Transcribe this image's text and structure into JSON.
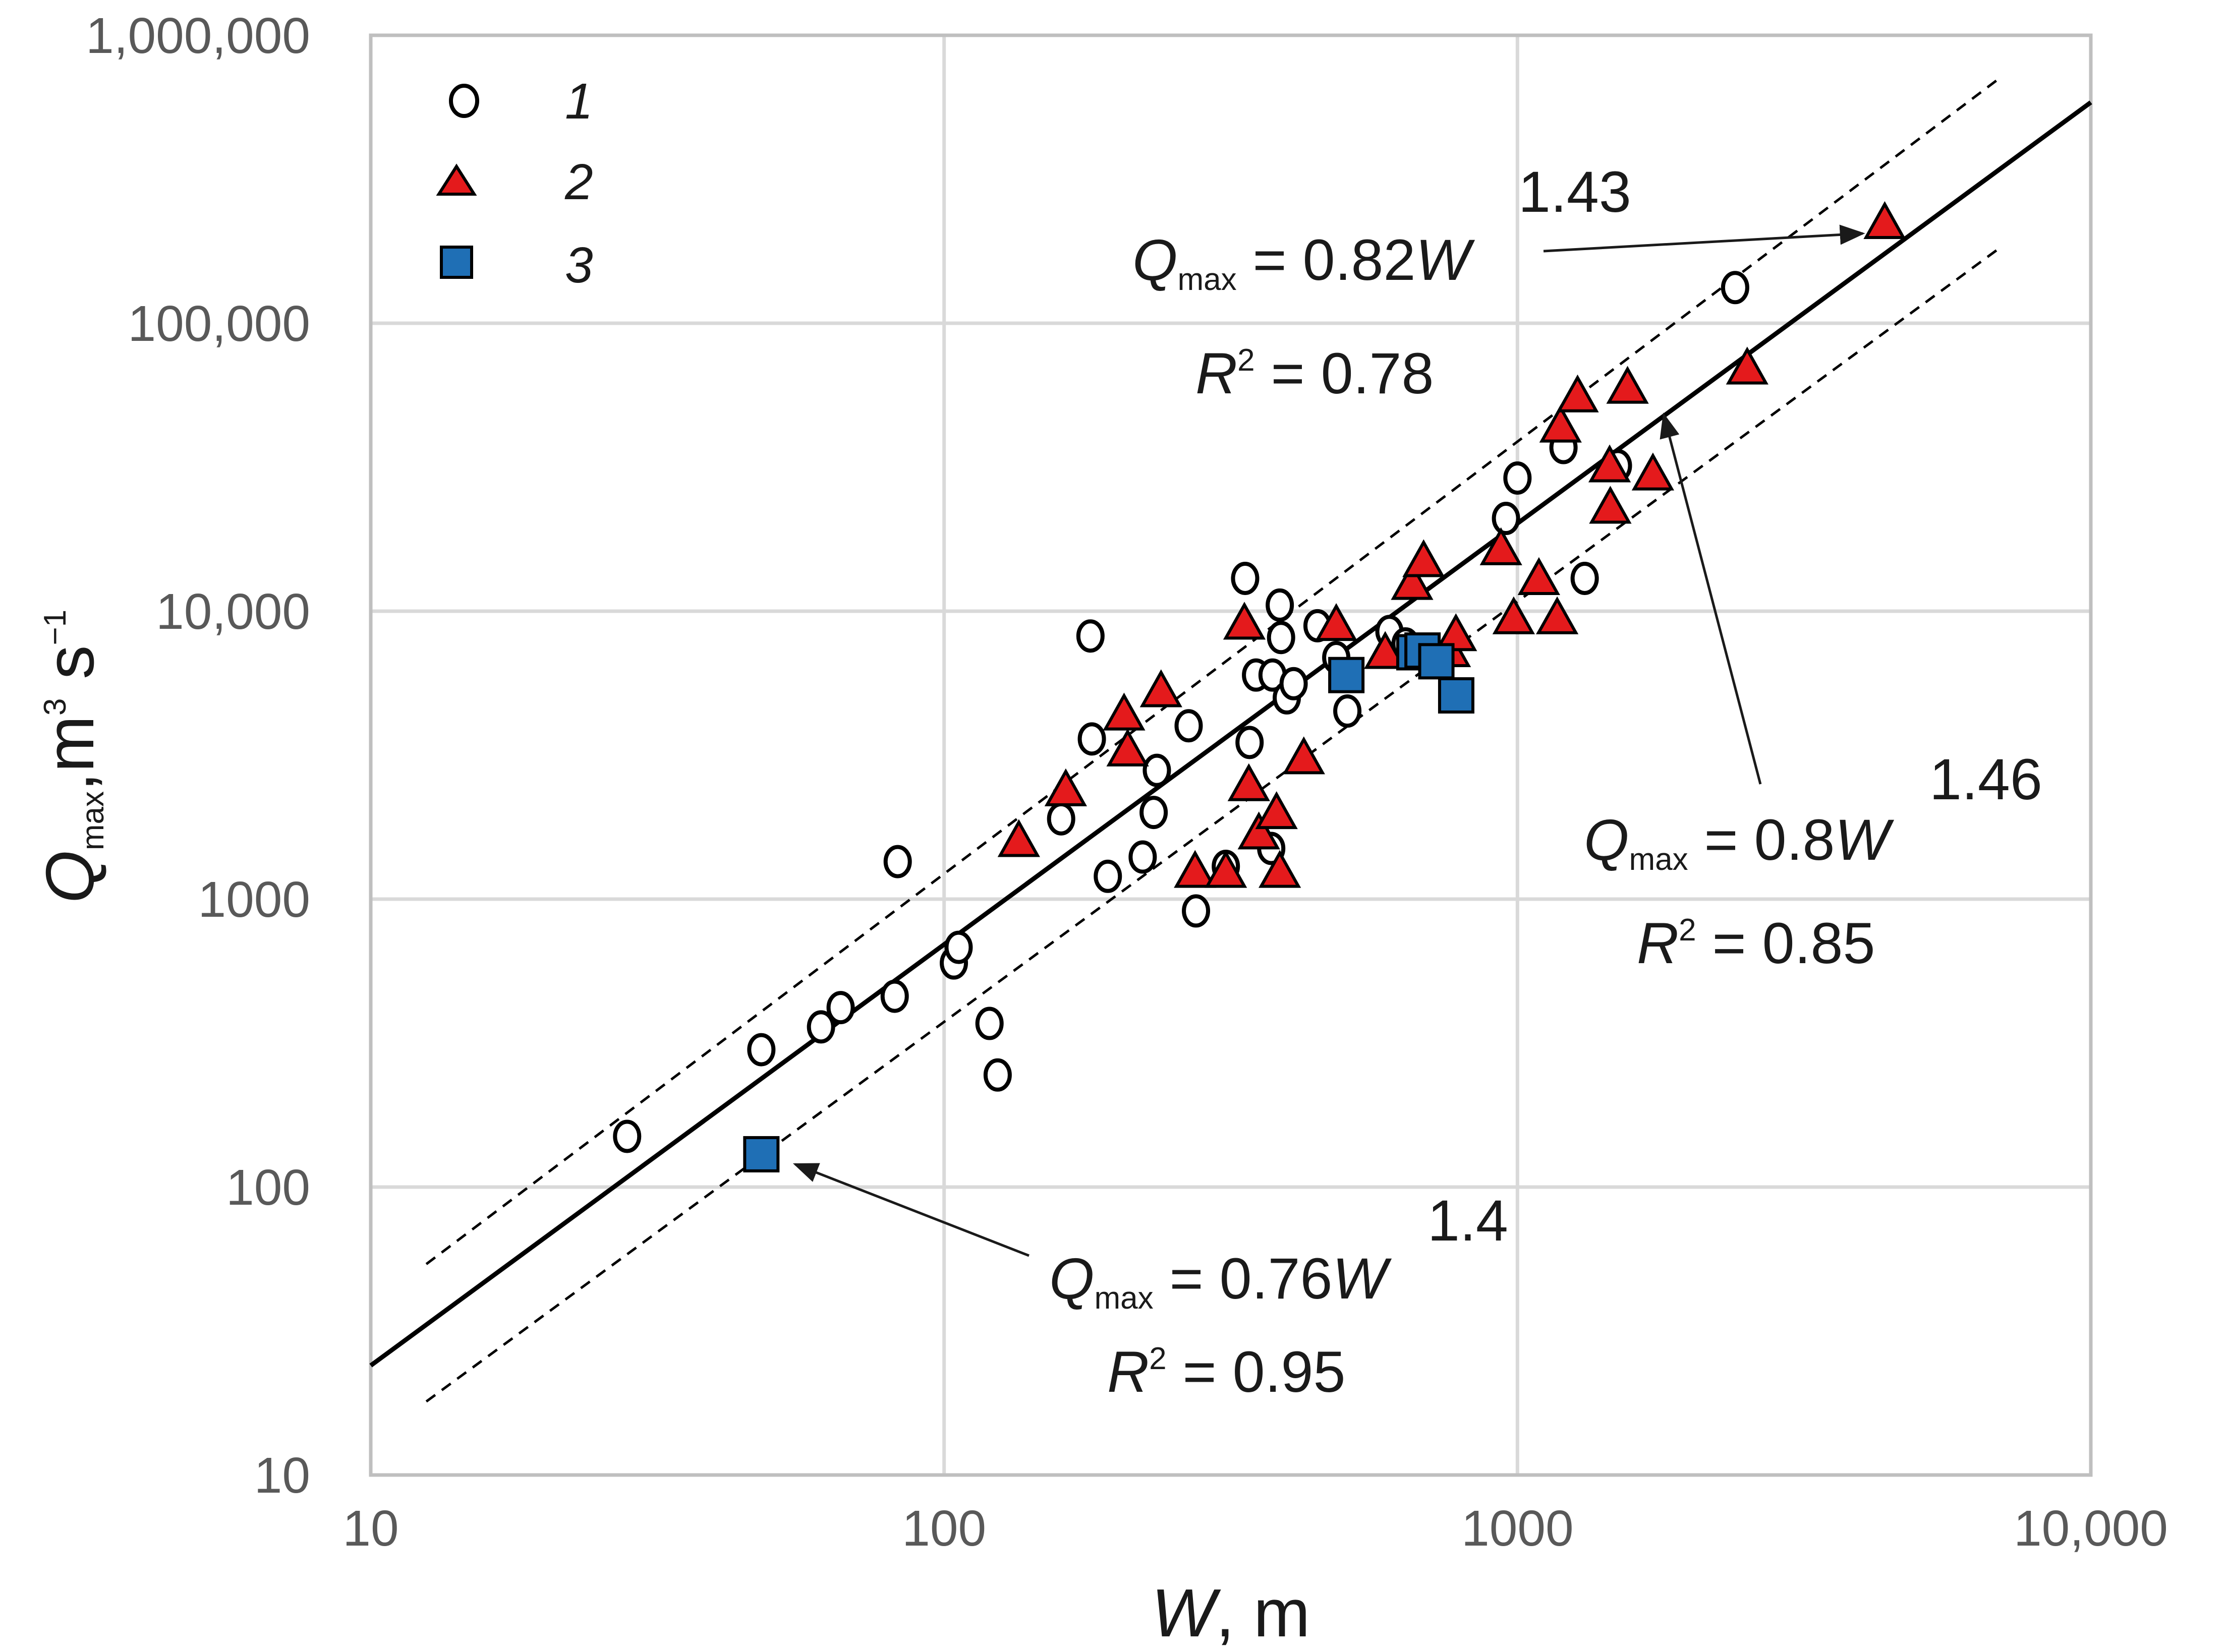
{
  "chart_data": {
    "type": "scatter",
    "xscale": "log",
    "yscale": "log",
    "xlim": [
      10,
      10000
    ],
    "ylim": [
      10,
      1000000
    ],
    "x_ticks": [
      10,
      100,
      1000,
      10000
    ],
    "x_tick_labels": [
      "10",
      "100",
      "1000",
      "10,000"
    ],
    "y_ticks": [
      10,
      100,
      1000,
      10000,
      100000,
      1000000
    ],
    "y_tick_labels": [
      "10",
      "100",
      "1000",
      "10,000",
      "100,000",
      "1,000,000"
    ],
    "xlabel": {
      "var": "W",
      "rest": ", m"
    },
    "ylabel": {
      "var": "Q",
      "sub": "max",
      "unit": "m",
      "sup1": "3",
      "unit2": " s",
      "sup2": "−1"
    },
    "legend_position": "top-left",
    "grid": true,
    "series": [
      {
        "name": "1",
        "marker": "circle",
        "color": "#ffffff",
        "points": [
          [
            28,
            150
          ],
          [
            48,
            300
          ],
          [
            61,
            360
          ],
          [
            66,
            420
          ],
          [
            82,
            460
          ],
          [
            83,
            1350
          ],
          [
            104,
            600
          ],
          [
            106,
            680
          ],
          [
            120,
            370
          ],
          [
            124,
            245
          ],
          [
            160,
            1900
          ],
          [
            180,
            8200
          ],
          [
            181,
            3600
          ],
          [
            193,
            1200
          ],
          [
            222,
            1400
          ],
          [
            232,
            2000
          ],
          [
            235,
            2800
          ],
          [
            267,
            4000
          ],
          [
            275,
            910
          ],
          [
            310,
            1300
          ],
          [
            335,
            13000
          ],
          [
            341,
            3500
          ],
          [
            350,
            6000
          ],
          [
            372,
            1500
          ],
          [
            374,
            6000
          ],
          [
            385,
            10500
          ],
          [
            387,
            8100
          ],
          [
            396,
            5000
          ],
          [
            407,
            5600
          ],
          [
            448,
            8900
          ],
          [
            483,
            6900
          ],
          [
            505,
            4500
          ],
          [
            598,
            8500
          ],
          [
            638,
            7700
          ],
          [
            955,
            21000
          ],
          [
            1000,
            29000
          ],
          [
            1203,
            37000
          ],
          [
            1310,
            13000
          ],
          [
            1497,
            32000
          ],
          [
            2397,
            133000
          ]
        ]
      },
      {
        "name": "2",
        "marker": "triangle",
        "color": "#e41a1c",
        "points": [
          [
            135,
            1600
          ],
          [
            163,
            2400
          ],
          [
            206,
            4400
          ],
          [
            209,
            3300
          ],
          [
            239,
            5300
          ],
          [
            274,
            1250
          ],
          [
            310,
            1250
          ],
          [
            334,
            9100
          ],
          [
            340,
            2500
          ],
          [
            354,
            1700
          ],
          [
            380,
            2000
          ],
          [
            385,
            1250
          ],
          [
            424,
            3100
          ],
          [
            483,
            9000
          ],
          [
            588,
            7200
          ],
          [
            655,
            12500
          ],
          [
            686,
            15000
          ],
          [
            762,
            7300
          ],
          [
            781,
            8300
          ],
          [
            936,
            16500
          ],
          [
            985,
            9500
          ],
          [
            1090,
            13000
          ],
          [
            1173,
            9500
          ],
          [
            1189,
            44000
          ],
          [
            1273,
            56000
          ],
          [
            1448,
            32000
          ],
          [
            1452,
            23000
          ],
          [
            1556,
            60000
          ],
          [
            1723,
            30000
          ],
          [
            2516,
            70000
          ],
          [
            4371,
            224000
          ]
        ]
      },
      {
        "name": "3",
        "marker": "square",
        "color": "#1f6fb5",
        "points": [
          [
            48,
            130
          ],
          [
            503,
            6000
          ],
          [
            661,
            7200
          ],
          [
            683,
            7300
          ],
          [
            722,
            6700
          ],
          [
            782,
            5100
          ]
        ]
      }
    ],
    "fit_lines": [
      {
        "style": "solid",
        "x": [
          10,
          10000
        ],
        "y": [
          24,
          585000
        ]
      },
      {
        "style": "dashed",
        "x": [
          12.5,
          7000
        ],
        "y": [
          54,
          720000
        ]
      },
      {
        "style": "dashed",
        "x": [
          12.5,
          7000
        ],
        "y": [
          18,
          185000
        ]
      }
    ],
    "annotations": [
      {
        "id": "eq-2",
        "q": "Q",
        "sub": "max",
        "coef": " = 0.82",
        "var": "W",
        "exp": "1.43",
        "r": "R",
        "rsup": "2",
        "rval": " = 0.78",
        "arrow_to": [
          4000,
          205000
        ]
      },
      {
        "id": "eq-1",
        "q": "Q",
        "sub": "max",
        "coef": " = 0.8",
        "var": "W",
        "exp": "1.46",
        "r": "R",
        "rsup": "2",
        "rval": " = 0.85",
        "arrow_to": [
          1800,
          48000
        ]
      },
      {
        "id": "eq-3",
        "q": "Q",
        "sub": "max",
        "coef": " = 0.76",
        "var": "W",
        "exp": "1.4",
        "r": "R",
        "rsup": "2",
        "rval": " = 0.95",
        "arrow_to": [
          55,
          120
        ]
      }
    ]
  }
}
